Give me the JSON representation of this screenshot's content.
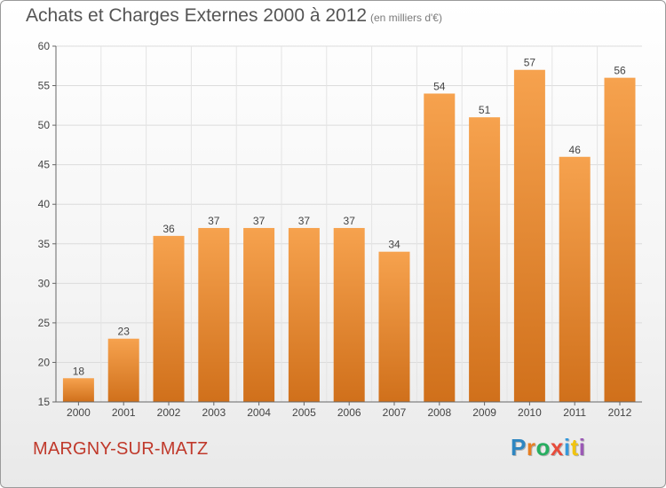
{
  "header": {
    "title": "Achats et Charges Externes 2000 à 2012",
    "unit": "(en milliers d'€)"
  },
  "footer": {
    "commune": "MARGNY-SUR-MATZ",
    "brand_letters": [
      "P",
      "r",
      "o",
      "x",
      "i",
      "t",
      "i"
    ]
  },
  "colors": {
    "bar_top": "#f6a24e",
    "bar_bottom": "#d0701b",
    "brand": [
      "#2e86c1",
      "#e67e22",
      "#27ae60",
      "#e74c3c",
      "#3498db",
      "#f1c40f",
      "#9b59b6"
    ]
  },
  "chart_data": {
    "type": "bar",
    "title": "Achats et Charges Externes 2000 à 2012",
    "subtitle": "(en milliers d'€)",
    "categories": [
      "2000",
      "2001",
      "2002",
      "2003",
      "2004",
      "2005",
      "2006",
      "2007",
      "2008",
      "2009",
      "2010",
      "2011",
      "2012"
    ],
    "values": [
      18,
      23,
      36,
      37,
      37,
      37,
      37,
      34,
      54,
      51,
      57,
      46,
      56
    ],
    "ylim": [
      15,
      60
    ],
    "yticks": [
      15,
      20,
      25,
      30,
      35,
      40,
      45,
      50,
      55,
      60
    ],
    "grid": true,
    "xlabel": "",
    "ylabel": ""
  }
}
